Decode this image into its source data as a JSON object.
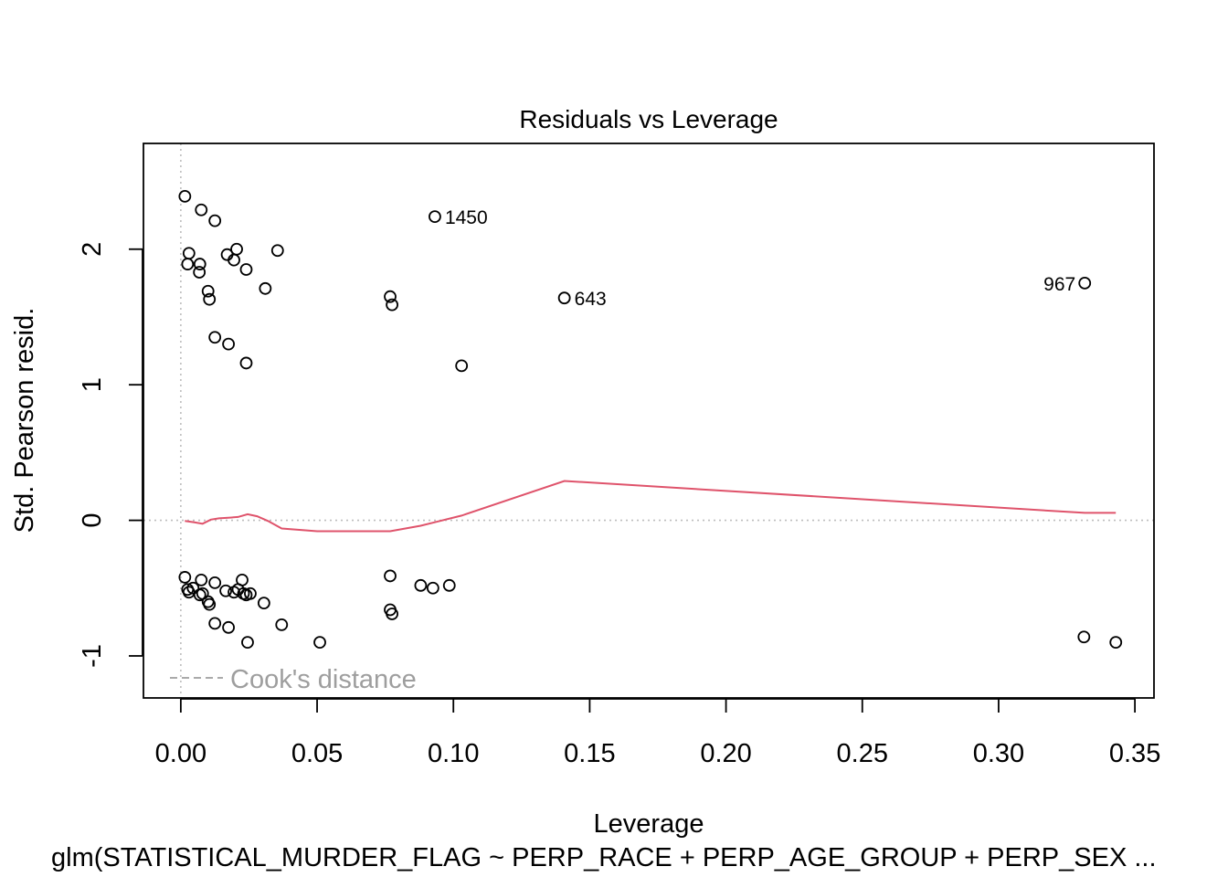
{
  "chart_data": {
    "type": "scatter",
    "title": "Residuals vs Leverage",
    "xlabel": "Leverage",
    "ylabel": "Std. Pearson resid.",
    "subtitle": "glm(STATISTICAL_MURDER_FLAG ~ PERP_RACE + PERP_AGE_GROUP + PERP_SEX ...",
    "xlim": [
      -0.0137,
      0.357
    ],
    "ylim": [
      -1.31,
      2.78
    ],
    "xticks": [
      0.0,
      0.05,
      0.1,
      0.15,
      0.2,
      0.25,
      0.3,
      0.35
    ],
    "xtick_labels": [
      "0.00",
      "0.05",
      "0.10",
      "0.15",
      "0.20",
      "0.25",
      "0.30",
      "0.35"
    ],
    "yticks": [
      -1,
      0,
      1,
      2
    ],
    "ytick_labels": [
      "-1",
      "0",
      "1",
      "2"
    ],
    "reference_lines": {
      "x": 0,
      "y": 0,
      "style": "dotted",
      "color": "#bebebe"
    },
    "smooth_color": "#df536b",
    "point_color": "#000000",
    "legend": {
      "label": "Cook's distance",
      "position": "bottom-left",
      "line_style": "dashed",
      "color": "#9e9e9e"
    },
    "points": [
      [
        0.0015,
        2.39
      ],
      [
        0.0075,
        2.29
      ],
      [
        0.0125,
        2.21
      ],
      [
        0.0205,
        2.0
      ],
      [
        0.0355,
        1.99
      ],
      [
        0.003,
        1.97
      ],
      [
        0.017,
        1.96
      ],
      [
        0.0195,
        1.92
      ],
      [
        0.0025,
        1.89
      ],
      [
        0.007,
        1.89
      ],
      [
        0.024,
        1.85
      ],
      [
        0.0068,
        1.83
      ],
      [
        0.031,
        1.71
      ],
      [
        0.01,
        1.69
      ],
      [
        0.0105,
        1.63
      ],
      [
        0.0768,
        1.65
      ],
      [
        0.0775,
        1.59
      ],
      [
        0.0125,
        1.35
      ],
      [
        0.0175,
        1.3
      ],
      [
        0.024,
        1.16
      ],
      [
        0.103,
        1.14
      ],
      [
        0.0932,
        2.24
      ],
      [
        0.1407,
        1.64
      ],
      [
        0.3316,
        1.75
      ],
      [
        0.0015,
        -0.42
      ],
      [
        0.0025,
        -0.51
      ],
      [
        0.003,
        -0.53
      ],
      [
        0.0045,
        -0.5
      ],
      [
        0.007,
        -0.55
      ],
      [
        0.0075,
        -0.44
      ],
      [
        0.008,
        -0.54
      ],
      [
        0.01,
        -0.6
      ],
      [
        0.0105,
        -0.62
      ],
      [
        0.0125,
        -0.46
      ],
      [
        0.0125,
        -0.76
      ],
      [
        0.0165,
        -0.52
      ],
      [
        0.0175,
        -0.79
      ],
      [
        0.0195,
        -0.53
      ],
      [
        0.021,
        -0.51
      ],
      [
        0.0225,
        -0.44
      ],
      [
        0.023,
        -0.54
      ],
      [
        0.024,
        -0.55
      ],
      [
        0.0245,
        -0.9
      ],
      [
        0.0255,
        -0.54
      ],
      [
        0.0305,
        -0.61
      ],
      [
        0.037,
        -0.77
      ],
      [
        0.051,
        -0.9
      ],
      [
        0.0768,
        -0.41
      ],
      [
        0.0768,
        -0.66
      ],
      [
        0.0775,
        -0.69
      ],
      [
        0.088,
        -0.48
      ],
      [
        0.0925,
        -0.5
      ],
      [
        0.0985,
        -0.48
      ],
      [
        0.3313,
        -0.86
      ],
      [
        0.343,
        -0.9
      ]
    ],
    "point_labels": [
      {
        "x": 0.0932,
        "y": 2.24,
        "text": "1450",
        "side": "right"
      },
      {
        "x": 0.1407,
        "y": 1.64,
        "text": "643",
        "side": "right"
      },
      {
        "x": 0.3316,
        "y": 1.75,
        "text": "967",
        "side": "left"
      }
    ],
    "smooth_line": [
      [
        0.0015,
        -0.005
      ],
      [
        0.005,
        -0.015
      ],
      [
        0.008,
        -0.025
      ],
      [
        0.011,
        0.005
      ],
      [
        0.014,
        0.015
      ],
      [
        0.018,
        0.02
      ],
      [
        0.021,
        0.025
      ],
      [
        0.0245,
        0.045
      ],
      [
        0.028,
        0.03
      ],
      [
        0.032,
        -0.005
      ],
      [
        0.037,
        -0.06
      ],
      [
        0.05,
        -0.08
      ],
      [
        0.0768,
        -0.08
      ],
      [
        0.088,
        -0.04
      ],
      [
        0.093,
        -0.015
      ],
      [
        0.103,
        0.035
      ],
      [
        0.1407,
        0.29
      ],
      [
        0.3316,
        0.055
      ],
      [
        0.343,
        0.055
      ]
    ]
  }
}
